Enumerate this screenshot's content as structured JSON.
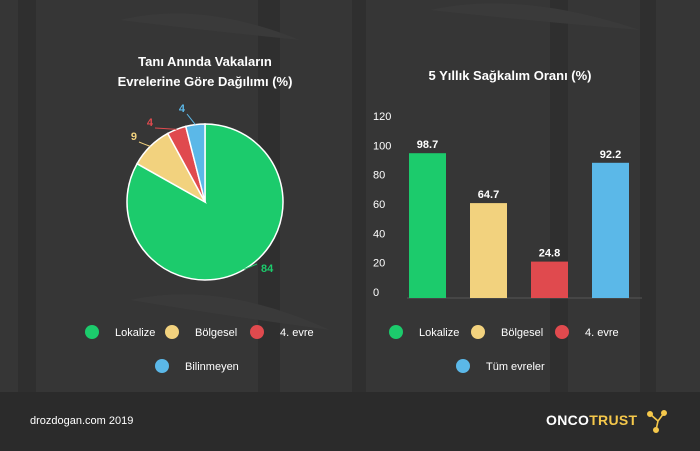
{
  "colors": {
    "green": "#1ccb6c",
    "yellow": "#f2d27e",
    "red": "#e04a4e",
    "blue": "#5bb8e8",
    "footer_bg": "#2b2b2b",
    "logo_accent": "#f5c84b"
  },
  "chart_data": [
    {
      "type": "pie",
      "title_lines": [
        "Tanı Anında Vakaların",
        "Evrelerine Göre Dağılımı (%)"
      ],
      "categories": [
        "Lokalize",
        "Bölgesel",
        "4. evre",
        "Bilinmeyen"
      ],
      "values": [
        84,
        9,
        4,
        4
      ],
      "data_labels": [
        "84",
        "9",
        "4",
        "4"
      ],
      "colors": [
        "#1ccb6c",
        "#f2d27e",
        "#e04a4e",
        "#5bb8e8"
      ],
      "legend": [
        "Lokalize",
        "Bölgesel",
        "4. evre",
        "Bilinmeyen"
      ],
      "legend_position": "bottom"
    },
    {
      "type": "bar",
      "title": "5 Yıllık Sağkalım Oranı (%)",
      "categories": [
        "Lokalize",
        "Bölgesel",
        "4. evre",
        "Tüm evreler"
      ],
      "values": [
        98.7,
        64.7,
        24.8,
        92.2
      ],
      "data_labels": [
        "98.7",
        "64.7",
        "24.8",
        "92.2"
      ],
      "colors": [
        "#1ccb6c",
        "#f2d27e",
        "#e04a4e",
        "#5bb8e8"
      ],
      "ylim": [
        0,
        120
      ],
      "y_ticks": [
        "0",
        "20",
        "40",
        "60",
        "80",
        "100",
        "120"
      ],
      "grid": false,
      "legend": [
        "Lokalize",
        "Bölgesel",
        "4. evre",
        "Tüm evreler"
      ],
      "legend_position": "bottom"
    }
  ],
  "footer": {
    "credit": "drozdogan.com 2019",
    "logo_onco": "ONCO",
    "logo_trust": "TRUST"
  }
}
